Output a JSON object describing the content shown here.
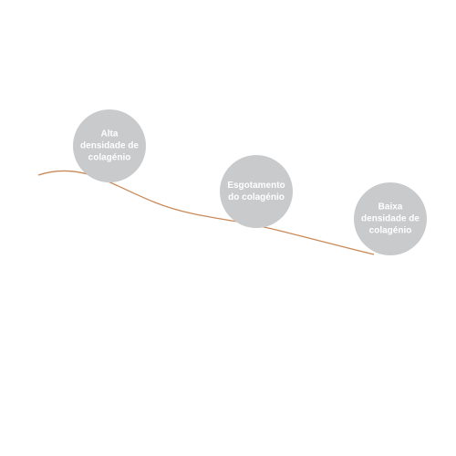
{
  "nodes": [
    {
      "lines": [
        "Alta",
        "densidade de",
        "colagénio"
      ]
    },
    {
      "lines": [
        "Esgotamento",
        "do colagénio"
      ]
    },
    {
      "lines": [
        "Baixa",
        "densidade de",
        "colagénio"
      ]
    }
  ]
}
